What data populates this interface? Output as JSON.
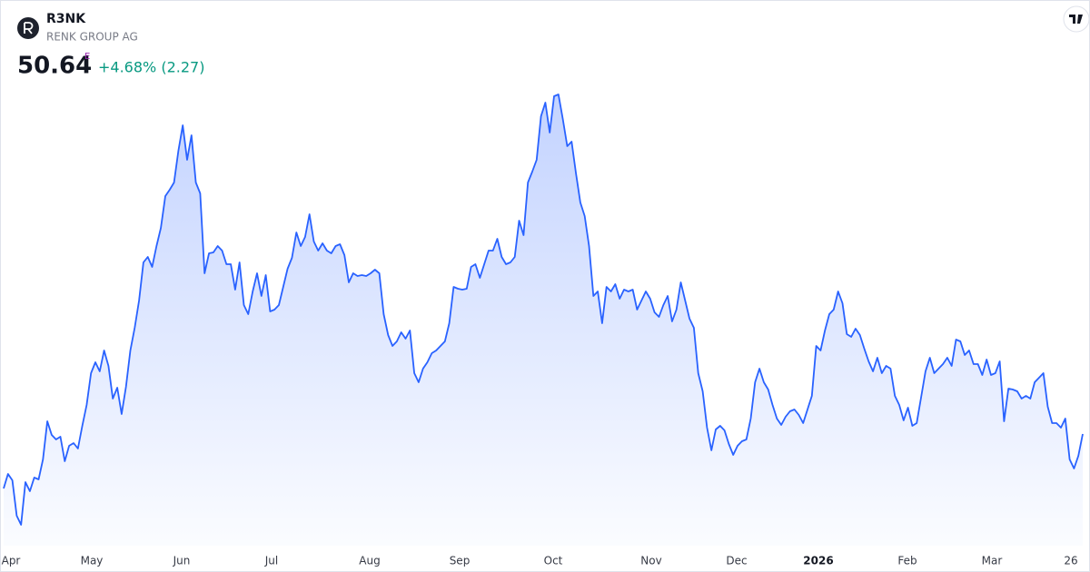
{
  "header": {
    "symbol": "R3NK",
    "name": "RENK GROUP AG",
    "price": "50.64",
    "flag": "E",
    "change": "+4.68% (2.27)"
  },
  "chart_data": {
    "type": "area",
    "series": [
      {
        "color": "#2962ff",
        "values": [
          44.64,
          46.24,
          45.54,
          41.64,
          40.64,
          45.34,
          44.34,
          45.84,
          45.64,
          47.84,
          52.04,
          50.54,
          50.04,
          50.34,
          47.64,
          49.34,
          49.64,
          49.04,
          51.54,
          53.84,
          57.34,
          58.54,
          57.54,
          59.84,
          58.14,
          54.54,
          55.74,
          52.84,
          55.84,
          59.84,
          62.34,
          65.34,
          69.54,
          70.14,
          69.04,
          71.34,
          73.34,
          76.84,
          77.54,
          78.34,
          81.84,
          84.64,
          80.84,
          83.54,
          78.34,
          77.14,
          68.34,
          70.54,
          70.64,
          71.34,
          70.84,
          69.34,
          69.34,
          66.54,
          69.54,
          64.84,
          63.84,
          66.34,
          68.34,
          65.84,
          68.14,
          64.14,
          64.34,
          64.84,
          66.84,
          68.84,
          70.04,
          72.84,
          71.34,
          72.34,
          74.84,
          71.84,
          70.84,
          71.64,
          70.84,
          70.54,
          71.34,
          71.54,
          70.34,
          67.34,
          68.34,
          68.04,
          68.14,
          68.04,
          68.34,
          68.74,
          68.34,
          63.84,
          61.54,
          60.34,
          60.84,
          61.84,
          61.14,
          62.04,
          57.34,
          56.34,
          57.84,
          58.54,
          59.54,
          59.84,
          60.34,
          60.84,
          62.84,
          66.84,
          66.64,
          66.54,
          66.64,
          69.04,
          69.34,
          67.84,
          69.34,
          70.84,
          70.84,
          72.14,
          70.14,
          69.34,
          69.54,
          70.14,
          74.14,
          72.54,
          78.34,
          79.54,
          80.84,
          85.64,
          87.14,
          83.84,
          87.84,
          88.04,
          85.34,
          82.34,
          82.84,
          79.34,
          76.14,
          74.64,
          71.34,
          65.84,
          66.34,
          62.84,
          66.84,
          66.34,
          67.14,
          65.54,
          66.54,
          66.34,
          66.54,
          64.34,
          65.34,
          66.34,
          65.54,
          64.04,
          63.54,
          64.84,
          65.84,
          63.04,
          64.34,
          67.34,
          65.34,
          63.34,
          62.34,
          57.34,
          55.34,
          51.34,
          48.84,
          51.14,
          51.54,
          51.04,
          49.54,
          48.34,
          49.34,
          49.84,
          50.04,
          52.34,
          56.34,
          57.84,
          56.34,
          55.54,
          53.84,
          52.34,
          51.64,
          52.54,
          53.14,
          53.34,
          52.74,
          51.84,
          53.34,
          54.84,
          60.34,
          59.84,
          62.04,
          63.84,
          64.34,
          66.34,
          65.04,
          61.64,
          61.34,
          62.24,
          61.54,
          60.04,
          58.64,
          57.54,
          59.04,
          57.34,
          58.14,
          57.84,
          54.84,
          53.84,
          52.14,
          53.54,
          51.54,
          51.84,
          54.64,
          57.54,
          59.04,
          57.34,
          57.84,
          58.34,
          59.04,
          58.14,
          61.04,
          60.84,
          59.34,
          59.84,
          58.34,
          58.34,
          57.14,
          58.84,
          57.14,
          57.34,
          58.64,
          52.04,
          55.64,
          55.54,
          55.34,
          54.54,
          54.84,
          54.54,
          56.34,
          56.84,
          57.34,
          53.64,
          51.84,
          51.84,
          51.34,
          52.34,
          47.84,
          46.84,
          48.24,
          50.64
        ]
      }
    ],
    "x_labels": [
      "Apr",
      "May",
      "Jun",
      "Jul",
      "Aug",
      "Sep",
      "Oct",
      "Nov",
      "Dec",
      "2026",
      "Feb",
      "Mar",
      "26"
    ]
  }
}
